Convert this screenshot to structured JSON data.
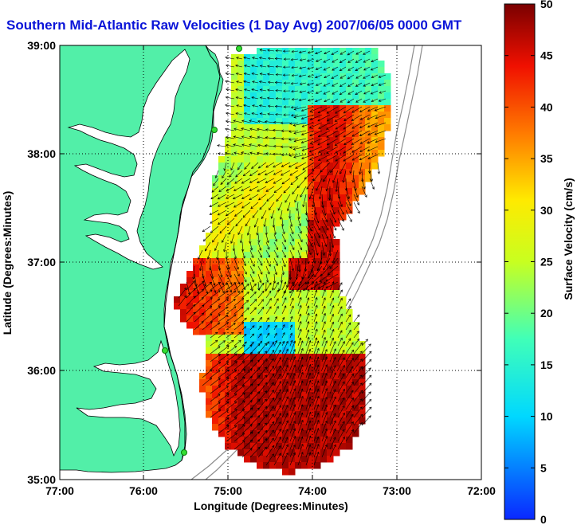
{
  "title": "Southern Mid-Atlantic Raw Velocities (1 Day Avg) 2007/06/05 0000 GMT",
  "map": {
    "x_axis": {
      "label": "Longitude (Degrees:Minutes)",
      "ticks": [
        "77:00",
        "76:00",
        "75:00",
        "74:00",
        "73:00",
        "72:00"
      ]
    },
    "y_axis": {
      "label": "Latitude (Degrees:Minutes)",
      "ticks": [
        "39:00",
        "38:00",
        "37:00",
        "36:00",
        "35:00"
      ]
    },
    "grid": "dotted",
    "colors": {
      "land": "#52efa8",
      "water": "#ffffff",
      "coast": "#000000",
      "bathymetry": "#8c8c8c",
      "stations": "#33dd33",
      "arrows": "#000000"
    }
  },
  "colorbar": {
    "label": "Surface Velocity (cm/s)",
    "ticks": [
      "50",
      "45",
      "40",
      "35",
      "30",
      "25",
      "20",
      "15",
      "10",
      "5",
      "0"
    ],
    "range": [
      0,
      50
    ],
    "unit": "cm/s"
  }
}
